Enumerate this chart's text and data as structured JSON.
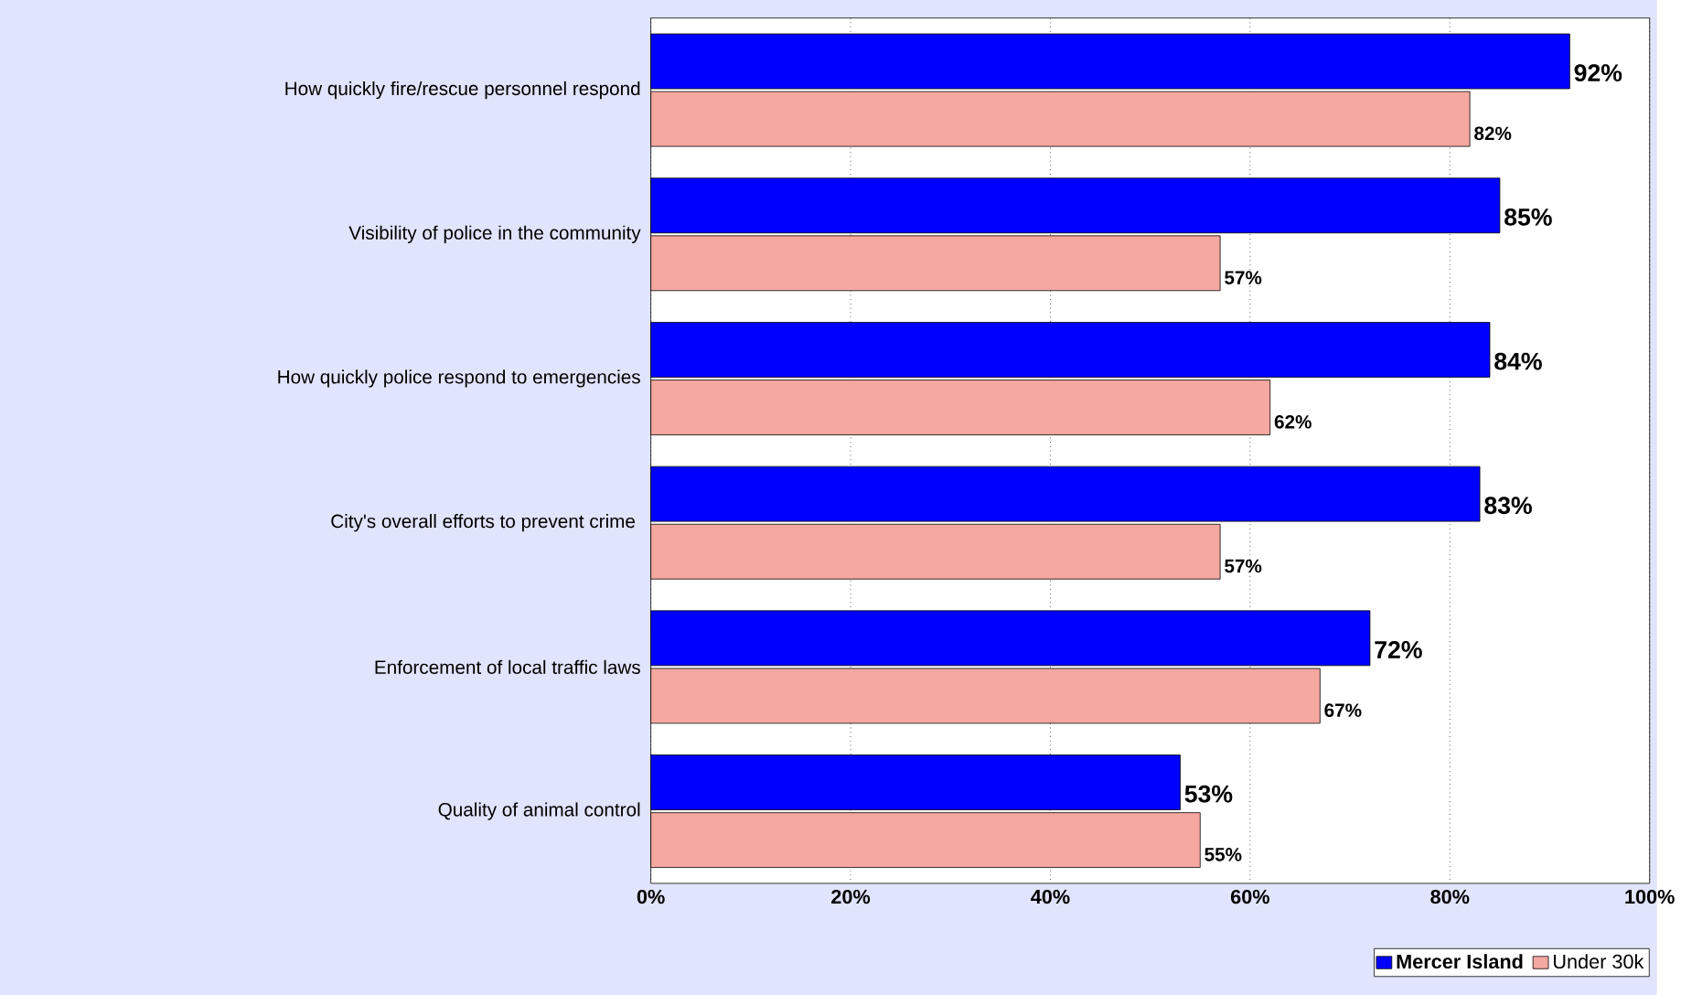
{
  "chart_data": {
    "type": "bar",
    "orientation": "horizontal",
    "categories": [
      "How quickly fire/rescue personnel respond",
      "Visibility of police in the community",
      "How quickly police respond to emergencies",
      "City's overall efforts to prevent crime ",
      "Enforcement of local traffic laws",
      "Quality of animal control"
    ],
    "series": [
      {
        "name": "Mercer Island",
        "color": "#0000ff",
        "values": [
          92,
          85,
          84,
          83,
          72,
          53
        ],
        "value_labels": [
          "92%",
          "85%",
          "84%",
          "83%",
          "72%",
          "53%"
        ]
      },
      {
        "name": "Under 30k",
        "color": "#f4a8a0",
        "values": [
          82,
          57,
          62,
          57,
          67,
          55
        ],
        "value_labels": [
          "82%",
          "57%",
          "62%",
          "57%",
          "67%",
          "55%"
        ]
      }
    ],
    "xlim": [
      0,
      100
    ],
    "xticks": [
      {
        "value": 0,
        "label": "0%"
      },
      {
        "value": 20,
        "label": "20%"
      },
      {
        "value": 40,
        "label": "40%"
      },
      {
        "value": 60,
        "label": "60%"
      },
      {
        "value": 80,
        "label": "80%"
      },
      {
        "value": 100,
        "label": "100%"
      }
    ],
    "grid": "x",
    "legend": "bottom right"
  }
}
